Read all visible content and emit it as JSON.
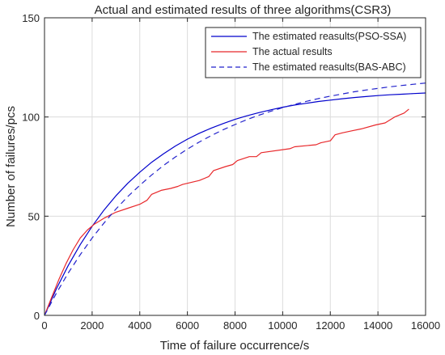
{
  "chart_data": {
    "type": "line",
    "title": "Actual and estimated results of three algorithms(CSR3)",
    "xlabel": "Time of failure occurrence/s",
    "ylabel": "Number of failures/pcs",
    "xlim": [
      0,
      16000
    ],
    "ylim": [
      0,
      150
    ],
    "xticks": [
      0,
      2000,
      4000,
      6000,
      8000,
      10000,
      12000,
      14000,
      16000
    ],
    "yticks": [
      0,
      50,
      100,
      150
    ],
    "grid": true,
    "legend_position": "top-right",
    "series": [
      {
        "name": "The estimated reasults(PSO-SSA)",
        "color": "#0000cc",
        "style": "solid",
        "x": [
          0,
          500,
          1000,
          1500,
          2000,
          2500,
          3000,
          3500,
          4000,
          4500,
          5000,
          5500,
          6000,
          6500,
          7000,
          7500,
          8000,
          8500,
          9000,
          9500,
          10000,
          10500,
          11000,
          11500,
          12000,
          12500,
          13000,
          13500,
          14000,
          14500,
          15000,
          15500,
          16000
        ],
        "y": [
          0,
          13.4,
          25.2,
          35.7,
          44.9,
          53.1,
          60.3,
          66.6,
          72.2,
          77.2,
          81.5,
          85.4,
          88.8,
          91.8,
          94.4,
          96.7,
          98.8,
          100.6,
          102.2,
          103.6,
          104.9,
          106.0,
          106.9,
          107.8,
          108.5,
          109.2,
          109.8,
          110.3,
          110.8,
          111.2,
          111.5,
          111.8,
          112.1
        ]
      },
      {
        "name": "The actual results",
        "color": "#e8282b",
        "style": "solid",
        "x": [
          0,
          300,
          600,
          900,
          1200,
          1500,
          1800,
          2100,
          2500,
          3000,
          3500,
          4000,
          4300,
          4500,
          4900,
          5300,
          5600,
          5800,
          6500,
          6900,
          7100,
          7600,
          7900,
          8100,
          8600,
          8900,
          9100,
          10300,
          10500,
          11400,
          11600,
          12000,
          12200,
          12500,
          12900,
          13300,
          13900,
          14300,
          14700,
          15100,
          15300
        ],
        "y": [
          0,
          9,
          18,
          26,
          33,
          39,
          43,
          46,
          49,
          52,
          54,
          56,
          58,
          61,
          63,
          64,
          65,
          66,
          68,
          70,
          73,
          75,
          76,
          78,
          80,
          80,
          82,
          84,
          85,
          86,
          87,
          88,
          91,
          92,
          93,
          94,
          96,
          97,
          100,
          102,
          104
        ]
      },
      {
        "name": "The estimated reasults(BAS-ABC)",
        "color": "#2222cc",
        "style": "dashed",
        "x": [
          0,
          500,
          1000,
          1500,
          2000,
          2500,
          3000,
          3500,
          4000,
          4500,
          5000,
          5500,
          6000,
          6500,
          7000,
          7500,
          8000,
          8500,
          9000,
          9500,
          10000,
          10500,
          11000,
          11500,
          12000,
          12500,
          13000,
          13500,
          14000,
          14500,
          15000,
          15500,
          16000
        ],
        "y": [
          0,
          11.2,
          21.4,
          30.6,
          39.0,
          46.6,
          53.6,
          59.9,
          65.6,
          70.8,
          75.6,
          79.9,
          83.8,
          87.4,
          90.6,
          93.6,
          96.2,
          98.7,
          100.9,
          102.9,
          104.7,
          106.4,
          107.9,
          109.3,
          110.5,
          111.6,
          112.7,
          113.6,
          114.4,
          115.2,
          115.9,
          116.5,
          117.1
        ]
      }
    ]
  }
}
